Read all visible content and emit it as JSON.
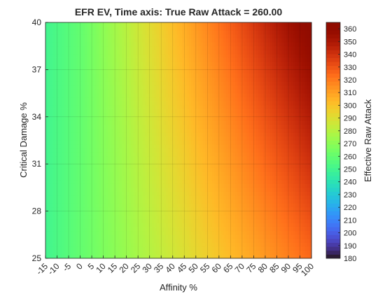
{
  "chart_data": {
    "type": "heatmap",
    "title": "EFR EV, Time axis: True Raw Attack = 260.00",
    "xlabel": "Affinity %",
    "ylabel": "Critical Damage %",
    "colorbar_label": "Effective Raw Attack",
    "true_raw": 260,
    "x": {
      "min": -15,
      "max": 100,
      "step": 1,
      "ticks": [
        "-15",
        "-10",
        "-5",
        "0",
        "5",
        "10",
        "15",
        "20",
        "25",
        "30",
        "35",
        "40",
        "45",
        "50",
        "55",
        "60",
        "65",
        "70",
        "75",
        "80",
        "85",
        "90",
        "95",
        "100"
      ]
    },
    "y": {
      "min": 25,
      "max": 40,
      "step": 0.25,
      "ticks": [
        "25",
        "28",
        "31",
        "34",
        "37",
        "40"
      ]
    },
    "color_limits": [
      180,
      365
    ],
    "colorbar_ticks": [
      "180",
      "190",
      "200",
      "210",
      "220",
      "230",
      "240",
      "250",
      "260",
      "270",
      "280",
      "290",
      "300",
      "310",
      "320",
      "330",
      "340",
      "350",
      "360"
    ],
    "colormap": "turbo",
    "grid": true
  }
}
